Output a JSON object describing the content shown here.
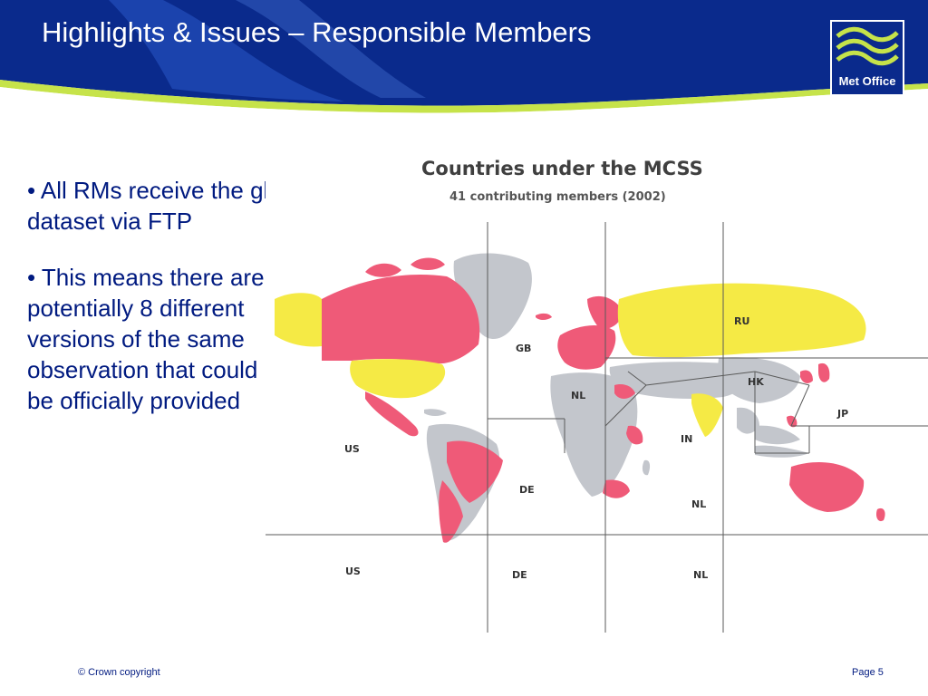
{
  "header": {
    "title": "Highlights & Issues – Responsible Members",
    "logo_text": "Met Office"
  },
  "bullets": [
    "• All RMs receive the global dataset via FTP",
    "• This means there are potentially 8 different versions of the same observation that could be officially provided"
  ],
  "map": {
    "title": "Countries under the MCSS",
    "subtitle": "41 contributing members (2002)",
    "regions": {
      "ru": "RU",
      "gb": "GB",
      "hk": "HK",
      "nl_africa": "NL",
      "jp": "JP",
      "in": "IN",
      "us_middle": "US",
      "de_middle": "DE",
      "nl_middle": "NL",
      "us_bottom": "US",
      "de_bottom": "DE",
      "nl_bottom": "NL"
    }
  },
  "footer": {
    "copyright": "© Crown copyright",
    "page": "Page 5"
  },
  "colors": {
    "header_navy": "#0a2a8c",
    "accent_lime": "#c6e34a",
    "text_navy": "#001a80",
    "responsible_yellow": "#f5ea45",
    "contributing_pink": "#ef5a78",
    "other_grey": "#c3c6cc"
  }
}
